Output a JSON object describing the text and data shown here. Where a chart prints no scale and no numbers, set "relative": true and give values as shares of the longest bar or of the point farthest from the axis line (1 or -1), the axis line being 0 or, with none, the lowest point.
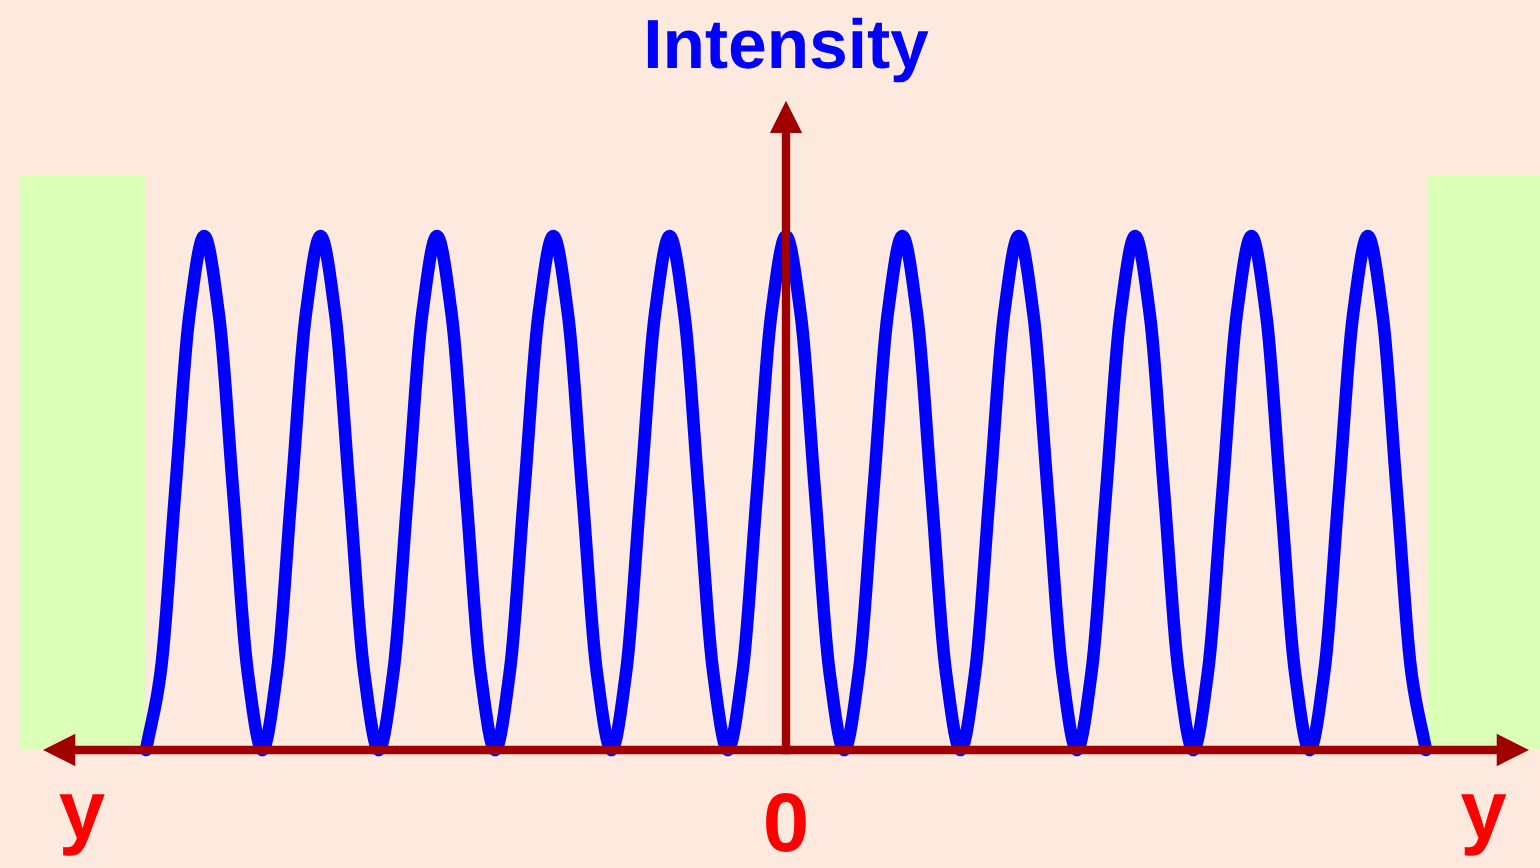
{
  "chart_data": {
    "type": "line",
    "xlabel": "y",
    "ylabel": "Intensity",
    "relative": true,
    "categories": [
      null,
      null,
      null,
      null,
      null,
      null,
      null,
      null,
      null,
      null,
      null,
      null,
      null,
      null,
      null,
      null,
      null,
      null,
      null,
      null,
      null,
      null,
      null,
      null,
      null,
      null,
      null,
      null,
      null,
      null,
      null,
      null,
      null,
      null,
      null,
      null,
      null,
      null,
      null,
      null,
      null,
      null,
      null,
      null,
      null,
      null,
      null,
      null,
      null,
      null,
      null,
      null,
      null,
      null,
      null,
      null,
      null,
      null,
      null,
      null,
      null,
      null,
      null,
      null,
      null,
      null,
      null,
      null,
      null,
      null,
      null,
      null,
      null,
      null,
      null,
      null,
      null,
      null,
      null,
      null,
      null,
      null,
      null,
      null,
      null,
      null,
      null,
      null,
      null
    ],
    "series": [
      {
        "color": "#0000ff",
        "values": [
          0,
          0.15,
          0.5,
          0.85,
          1,
          0.85,
          0.5,
          0.15,
          0,
          0.15,
          0.5,
          0.85,
          1,
          0.85,
          0.5,
          0.15,
          0,
          0.15,
          0.5,
          0.85,
          1,
          0.85,
          0.5,
          0.15,
          0,
          0.15,
          0.5,
          0.85,
          1,
          0.85,
          0.5,
          0.15,
          0,
          0.15,
          0.5,
          0.85,
          1,
          0.85,
          0.5,
          0.15,
          0,
          0.15,
          0.5,
          0.85,
          1,
          0.85,
          0.5,
          0.15,
          0,
          0.15,
          0.5,
          0.85,
          1,
          0.85,
          0.5,
          0.15,
          0,
          0.15,
          0.5,
          0.85,
          1,
          0.85,
          0.5,
          0.15,
          0,
          0.15,
          0.5,
          0.85,
          1,
          0.85,
          0.5,
          0.15,
          0,
          0.15,
          0.5,
          0.85,
          1,
          0.85,
          0.5,
          0.15,
          0,
          0.15,
          0.5,
          0.85,
          1,
          0.85,
          0.5,
          0.15,
          0
        ]
      }
    ],
    "annotations": [
      "0"
    ],
    "grid": false
  }
}
